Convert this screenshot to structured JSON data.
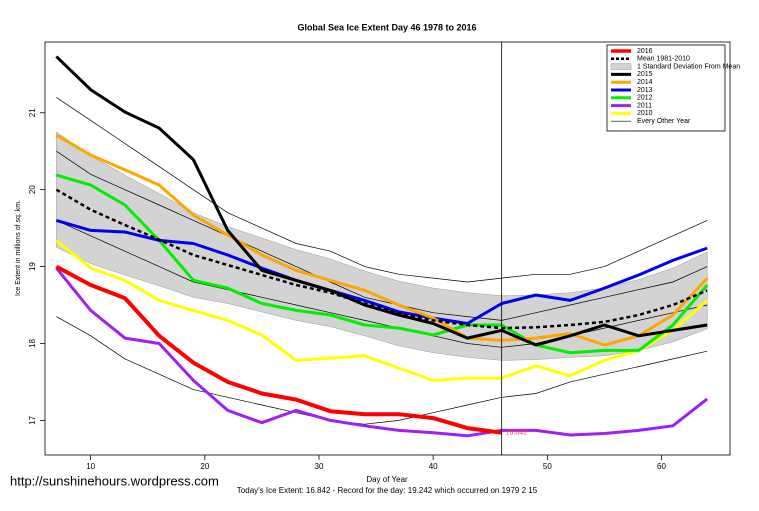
{
  "chart_data": {
    "type": "line",
    "title": "Global Sea Ice Extent Day 46 1978 to 2016",
    "xlabel": "Day of Year",
    "ylabel": "Ice Extent in millions of sq. km.",
    "subtitle": "Today's Ice Extent: 16.842  - Record for the day: 19.242 which occurred on 1979 2 15",
    "credit": "http://sunshinehours.wordpress.com",
    "annotation": {
      "x": 46,
      "y": 16.842,
      "text": "16.842"
    },
    "vline": 46,
    "xlim": [
      6,
      66
    ],
    "ylim": [
      16.55,
      21.92
    ],
    "xticks": [
      10,
      20,
      30,
      40,
      50,
      60
    ],
    "yticks": [
      17,
      18,
      19,
      20,
      21
    ],
    "legend": "top-right",
    "x": [
      7,
      10,
      13,
      16,
      19,
      22,
      25,
      28,
      31,
      34,
      37,
      40,
      43,
      46,
      49,
      52,
      55,
      58,
      61,
      64
    ],
    "series": [
      {
        "name": "2016",
        "color": "#ff0000",
        "width": 4,
        "values": [
          19.0,
          18.76,
          18.59,
          18.1,
          17.75,
          17.5,
          17.35,
          17.27,
          17.12,
          17.08,
          17.08,
          17.03,
          16.9,
          16.84,
          null,
          null,
          null,
          null,
          null,
          null
        ]
      },
      {
        "name": "Mean 1981-2010",
        "color": "#000000",
        "width": 2.5,
        "dash": true,
        "values": [
          20.0,
          19.74,
          19.54,
          19.35,
          19.15,
          19.02,
          18.89,
          18.76,
          18.66,
          18.52,
          18.39,
          18.3,
          18.24,
          18.2,
          18.21,
          18.24,
          18.28,
          18.37,
          18.5,
          18.69
        ]
      },
      {
        "name": "1 Standard Deviation From Mean",
        "color": "#d3d3d3",
        "upper": [
          20.75,
          20.44,
          20.19,
          19.95,
          19.7,
          19.52,
          19.37,
          19.22,
          19.1,
          18.94,
          18.81,
          18.72,
          18.66,
          18.62,
          18.63,
          18.66,
          18.72,
          18.83,
          18.98,
          19.19
        ],
        "lower": [
          19.25,
          19.04,
          18.89,
          18.75,
          18.6,
          18.52,
          18.41,
          18.3,
          18.22,
          18.1,
          17.97,
          17.88,
          17.82,
          17.78,
          17.79,
          17.82,
          17.84,
          17.91,
          18.02,
          18.19
        ]
      },
      {
        "name": "2015",
        "color": "#000000",
        "width": 3,
        "values": [
          21.73,
          21.3,
          21.01,
          20.8,
          20.39,
          19.47,
          18.95,
          18.82,
          18.69,
          18.5,
          18.37,
          18.26,
          18.07,
          18.17,
          17.98,
          18.1,
          18.24,
          18.1,
          18.17,
          18.24
        ]
      },
      {
        "name": "2014",
        "color": "#ffa500",
        "width": 3,
        "values": [
          20.71,
          20.45,
          20.26,
          20.06,
          19.67,
          19.41,
          19.15,
          18.95,
          18.82,
          18.69,
          18.5,
          18.33,
          18.07,
          18.04,
          18.07,
          18.13,
          17.98,
          18.1,
          18.37,
          18.85
        ]
      },
      {
        "name": "2013",
        "color": "#0000ee",
        "width": 3,
        "values": [
          19.6,
          19.47,
          19.45,
          19.34,
          19.3,
          19.15,
          18.98,
          18.82,
          18.69,
          18.56,
          18.41,
          18.33,
          18.26,
          18.52,
          18.63,
          18.56,
          18.72,
          18.89,
          19.08,
          19.24
        ]
      },
      {
        "name": "2012",
        "color": "#00ee00",
        "width": 3,
        "values": [
          20.19,
          20.06,
          19.8,
          19.34,
          18.82,
          18.72,
          18.52,
          18.43,
          18.37,
          18.24,
          18.2,
          18.11,
          18.24,
          18.24,
          17.98,
          17.88,
          17.91,
          17.91,
          18.24,
          18.76
        ]
      },
      {
        "name": "2011",
        "color": "#a020f0",
        "width": 3,
        "values": [
          18.98,
          18.43,
          18.07,
          18.0,
          17.52,
          17.13,
          16.97,
          17.13,
          17.0,
          16.93,
          16.87,
          16.84,
          16.8,
          16.87,
          16.87,
          16.81,
          16.83,
          16.87,
          16.93,
          17.28
        ]
      },
      {
        "name": "2010",
        "color": "#ffff00",
        "width": 3,
        "values": [
          19.34,
          18.98,
          18.82,
          18.56,
          18.43,
          18.3,
          18.11,
          17.78,
          17.81,
          17.84,
          17.68,
          17.52,
          17.55,
          17.55,
          17.71,
          17.58,
          17.78,
          17.91,
          18.17,
          18.56
        ]
      },
      {
        "name": "Every Other Year",
        "color": "#000000",
        "width": 0.7,
        "lines": [
          [
            21.2,
            20.9,
            20.6,
            20.3,
            20.0,
            19.7,
            19.5,
            19.3,
            19.2,
            19.0,
            18.9,
            18.85,
            18.8,
            18.85,
            18.9,
            18.9,
            19.0,
            19.2,
            19.4,
            19.6
          ],
          [
            20.5,
            20.2,
            20.0,
            19.8,
            19.6,
            19.4,
            19.2,
            19.0,
            18.8,
            18.6,
            18.5,
            18.4,
            18.35,
            18.3,
            18.4,
            18.5,
            18.6,
            18.7,
            18.8,
            19.0
          ],
          [
            19.6,
            19.4,
            19.2,
            19.0,
            18.8,
            18.7,
            18.6,
            18.5,
            18.4,
            18.3,
            18.2,
            18.1,
            18.0,
            17.95,
            18.0,
            18.1,
            18.2,
            18.3,
            18.4,
            18.5
          ],
          [
            18.35,
            18.1,
            17.8,
            17.6,
            17.4,
            17.3,
            17.2,
            17.1,
            17.0,
            16.95,
            17.0,
            17.1,
            17.2,
            17.3,
            17.35,
            17.5,
            17.6,
            17.7,
            17.8,
            17.9
          ]
        ]
      }
    ]
  }
}
